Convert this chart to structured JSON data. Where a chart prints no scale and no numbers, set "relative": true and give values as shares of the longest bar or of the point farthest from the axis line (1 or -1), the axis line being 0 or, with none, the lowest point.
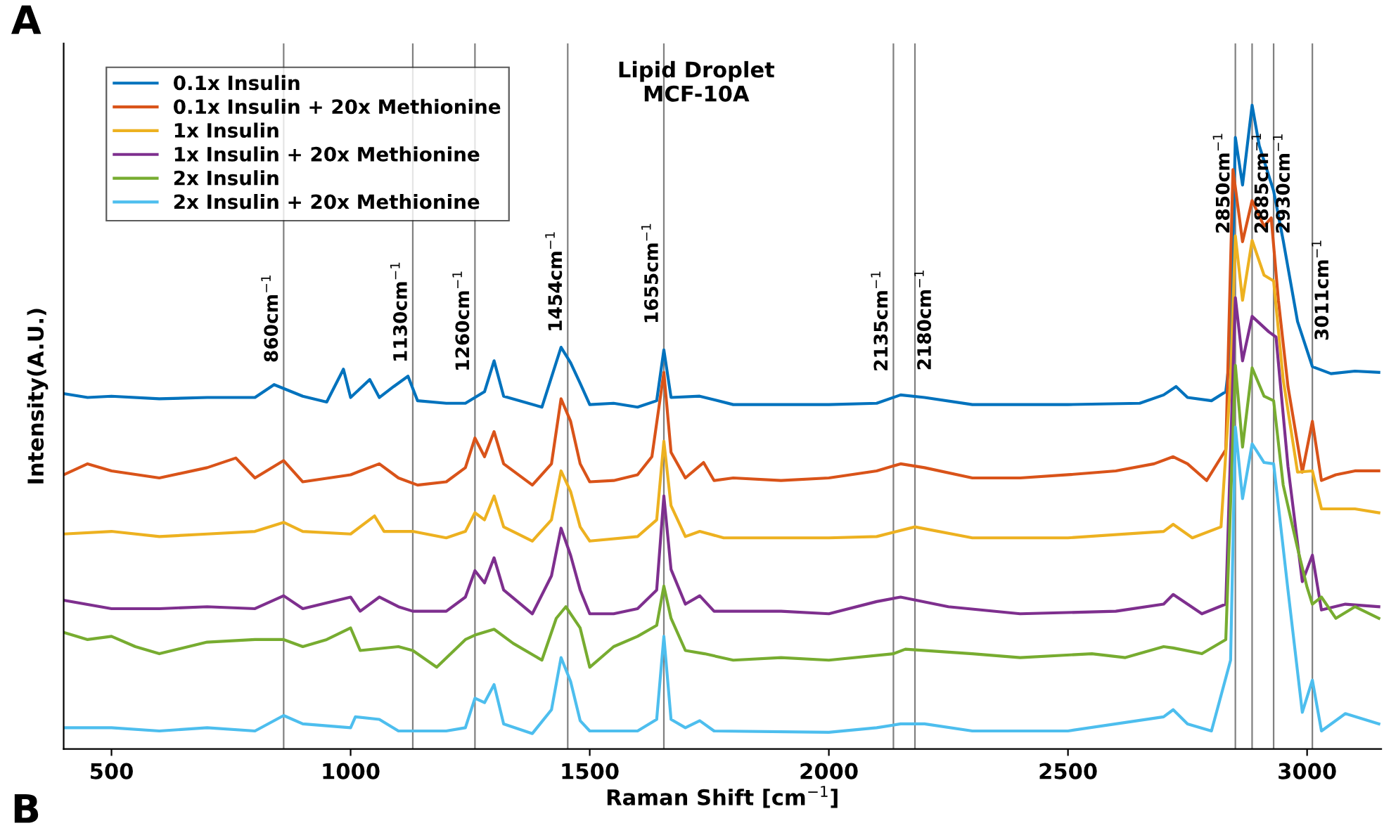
{
  "chart_data": {
    "type": "line",
    "title": "Lipid Droplet\nMCF-10A",
    "xlabel": "Raman Shift [cm$^{−1}$]",
    "ylabel": "Intensity(A.U.)",
    "relative": true,
    "annotations": [
      "A",
      "B"
    ],
    "xlim": [
      400,
      3155
    ],
    "xticks": [
      500,
      1000,
      1500,
      2000,
      2500,
      3000
    ],
    "grid": false,
    "legend": "top left",
    "marker": "none",
    "line_style": "solid",
    "ref_lines": [
      {
        "axis": "x",
        "value": 860,
        "label": "860cm$^{−1}$",
        "color": "#808080"
      },
      {
        "axis": "x",
        "value": 1130,
        "label": "1130cm$^{−1}$",
        "color": "#808080"
      },
      {
        "axis": "x",
        "value": 1260,
        "label": "1260cm$^{−1}$",
        "color": "#808080"
      },
      {
        "axis": "x",
        "value": 1454,
        "label": "1454cm$^{−1}$",
        "color": "#808080"
      },
      {
        "axis": "x",
        "value": 1655,
        "label": "1655cm$^{−1}$",
        "color": "#808080"
      },
      {
        "axis": "x",
        "value": 2135,
        "label": "2135cm$^{−1}$",
        "color": "#808080"
      },
      {
        "axis": "x",
        "value": 2180,
        "label": "2180cm$^{−1}$",
        "color": "#808080"
      },
      {
        "axis": "x",
        "value": 2850,
        "label": "2850cm$^{−1}$",
        "color": "#808080"
      },
      {
        "axis": "x",
        "value": 2885,
        "label": "2885cm$^{−1}$",
        "color": "#808080"
      },
      {
        "axis": "x",
        "value": 2930,
        "label": "2930cm$^{−1}$",
        "color": "#808080"
      },
      {
        "axis": "x",
        "value": 3011,
        "label": "3011cm$^{−1}$",
        "color": "#808080"
      }
    ],
    "series": [
      {
        "name": "0.1x Insulin",
        "color": "#0072bd",
        "x": [
          400,
          450,
          500,
          600,
          700,
          800,
          840,
          900,
          950,
          985,
          1000,
          1040,
          1060,
          1090,
          1120,
          1140,
          1200,
          1240,
          1280,
          1300,
          1320,
          1400,
          1440,
          1460,
          1480,
          1500,
          1550,
          1600,
          1640,
          1655,
          1670,
          1730,
          1800,
          2000,
          2100,
          2150,
          2200,
          2300,
          2500,
          2650,
          2700,
          2726,
          2750,
          2800,
          2830,
          2840,
          2850,
          2865,
          2885,
          2900,
          2930,
          2950,
          2980,
          3011,
          3050,
          3100,
          3150
        ],
        "values": [
          0.552,
          0.546,
          0.548,
          0.544,
          0.546,
          0.546,
          0.566,
          0.548,
          0.539,
          0.59,
          0.546,
          0.574,
          0.546,
          0.563,
          0.579,
          0.541,
          0.537,
          0.537,
          0.555,
          0.603,
          0.548,
          0.531,
          0.624,
          0.6,
          0.568,
          0.535,
          0.537,
          0.531,
          0.541,
          0.62,
          0.546,
          0.548,
          0.535,
          0.535,
          0.537,
          0.55,
          0.546,
          0.535,
          0.535,
          0.537,
          0.55,
          0.563,
          0.546,
          0.541,
          0.555,
          0.62,
          0.95,
          0.876,
          1.0,
          0.937,
          0.867,
          0.79,
          0.664,
          0.594,
          0.583,
          0.587,
          0.585
        ]
      },
      {
        "name": "0.1x Insulin + 20x Methionine",
        "color": "#d95319",
        "x": [
          400,
          450,
          500,
          600,
          700,
          760,
          800,
          860,
          900,
          1000,
          1060,
          1100,
          1140,
          1200,
          1240,
          1260,
          1280,
          1300,
          1320,
          1380,
          1420,
          1440,
          1460,
          1480,
          1500,
          1550,
          1600,
          1630,
          1655,
          1670,
          1700,
          1738,
          1760,
          1800,
          1900,
          2000,
          2100,
          2150,
          2200,
          2300,
          2400,
          2500,
          2600,
          2680,
          2720,
          2750,
          2790,
          2830,
          2845,
          2865,
          2885,
          2910,
          2925,
          2940,
          2960,
          2990,
          3011,
          3030,
          3060,
          3100,
          3150
        ],
        "values": [
          0.426,
          0.443,
          0.432,
          0.421,
          0.437,
          0.452,
          0.421,
          0.448,
          0.415,
          0.426,
          0.443,
          0.421,
          0.41,
          0.415,
          0.437,
          0.483,
          0.454,
          0.493,
          0.443,
          0.41,
          0.443,
          0.544,
          0.509,
          0.443,
          0.415,
          0.417,
          0.426,
          0.454,
          0.585,
          0.461,
          0.421,
          0.445,
          0.417,
          0.421,
          0.417,
          0.421,
          0.432,
          0.443,
          0.437,
          0.421,
          0.421,
          0.426,
          0.432,
          0.443,
          0.454,
          0.443,
          0.417,
          0.465,
          0.9,
          0.788,
          0.852,
          0.812,
          0.825,
          0.697,
          0.563,
          0.43,
          0.509,
          0.417,
          0.426,
          0.432,
          0.432
        ]
      },
      {
        "name": "1x Insulin",
        "color": "#edb120",
        "x": [
          400,
          500,
          600,
          700,
          800,
          860,
          900,
          1000,
          1050,
          1070,
          1130,
          1200,
          1240,
          1260,
          1280,
          1300,
          1320,
          1380,
          1420,
          1440,
          1460,
          1480,
          1500,
          1600,
          1640,
          1655,
          1670,
          1700,
          1730,
          1780,
          2000,
          2100,
          2180,
          2300,
          2500,
          2700,
          2720,
          2760,
          2820,
          2840,
          2850,
          2865,
          2885,
          2910,
          2930,
          2950,
          2980,
          3011,
          3030,
          3100,
          3150
        ],
        "values": [
          0.334,
          0.338,
          0.33,
          0.334,
          0.338,
          0.352,
          0.338,
          0.334,
          0.362,
          0.338,
          0.338,
          0.328,
          0.338,
          0.367,
          0.356,
          0.393,
          0.345,
          0.323,
          0.356,
          0.432,
          0.4,
          0.345,
          0.323,
          0.33,
          0.356,
          0.478,
          0.378,
          0.33,
          0.338,
          0.328,
          0.328,
          0.33,
          0.345,
          0.328,
          0.328,
          0.338,
          0.349,
          0.328,
          0.345,
          0.574,
          0.797,
          0.697,
          0.79,
          0.736,
          0.727,
          0.574,
          0.43,
          0.432,
          0.373,
          0.373,
          0.367
        ]
      },
      {
        "name": "1x Insulin + 20x Methionine",
        "color": "#7e2f8e",
        "x": [
          400,
          500,
          600,
          700,
          800,
          860,
          900,
          1000,
          1020,
          1060,
          1100,
          1130,
          1200,
          1240,
          1260,
          1280,
          1300,
          1320,
          1380,
          1420,
          1440,
          1460,
          1480,
          1500,
          1550,
          1600,
          1640,
          1655,
          1670,
          1700,
          1730,
          1760,
          1900,
          2000,
          2100,
          2150,
          2250,
          2400,
          2600,
          2700,
          2720,
          2780,
          2830,
          2850,
          2865,
          2885,
          2920,
          2935,
          2960,
          2990,
          3011,
          3030,
          3080,
          3150
        ],
        "values": [
          0.231,
          0.218,
          0.218,
          0.221,
          0.218,
          0.238,
          0.218,
          0.236,
          0.214,
          0.236,
          0.221,
          0.214,
          0.214,
          0.236,
          0.277,
          0.258,
          0.297,
          0.247,
          0.21,
          0.269,
          0.343,
          0.301,
          0.247,
          0.21,
          0.21,
          0.218,
          0.247,
          0.393,
          0.279,
          0.225,
          0.238,
          0.214,
          0.214,
          0.21,
          0.229,
          0.236,
          0.221,
          0.21,
          0.214,
          0.225,
          0.24,
          0.21,
          0.225,
          0.701,
          0.603,
          0.672,
          0.648,
          0.64,
          0.439,
          0.26,
          0.301,
          0.216,
          0.225,
          0.221
        ]
      },
      {
        "name": "2x Insulin",
        "color": "#77ac30",
        "x": [
          400,
          450,
          500,
          550,
          600,
          700,
          800,
          860,
          900,
          950,
          1000,
          1020,
          1100,
          1130,
          1180,
          1240,
          1260,
          1300,
          1340,
          1400,
          1430,
          1450,
          1480,
          1500,
          1550,
          1600,
          1640,
          1655,
          1670,
          1700,
          1740,
          1800,
          1900,
          2000,
          2135,
          2160,
          2300,
          2400,
          2550,
          2620,
          2700,
          2720,
          2780,
          2830,
          2850,
          2865,
          2885,
          2910,
          2930,
          2950,
          2980,
          3000,
          3011,
          3030,
          3060,
          3100,
          3150
        ],
        "values": [
          0.181,
          0.17,
          0.175,
          0.159,
          0.148,
          0.166,
          0.17,
          0.17,
          0.159,
          0.17,
          0.188,
          0.153,
          0.159,
          0.153,
          0.127,
          0.17,
          0.177,
          0.186,
          0.164,
          0.138,
          0.203,
          0.221,
          0.188,
          0.127,
          0.159,
          0.175,
          0.192,
          0.253,
          0.203,
          0.153,
          0.148,
          0.138,
          0.142,
          0.138,
          0.148,
          0.155,
          0.148,
          0.142,
          0.148,
          0.142,
          0.159,
          0.157,
          0.148,
          0.17,
          0.596,
          0.469,
          0.592,
          0.548,
          0.541,
          0.41,
          0.312,
          0.251,
          0.225,
          0.236,
          0.203,
          0.221,
          0.203
        ]
      },
      {
        "name": "2x Insulin + 20x Methionine",
        "color": "#4dbeee",
        "x": [
          400,
          500,
          600,
          700,
          800,
          860,
          900,
          1000,
          1010,
          1060,
          1100,
          1200,
          1240,
          1260,
          1280,
          1300,
          1320,
          1380,
          1420,
          1440,
          1460,
          1480,
          1500,
          1600,
          1640,
          1655,
          1670,
          1700,
          1730,
          1760,
          2000,
          2100,
          2150,
          2200,
          2300,
          2500,
          2700,
          2720,
          2750,
          2800,
          2840,
          2850,
          2865,
          2885,
          2910,
          2930,
          2960,
          2990,
          3011,
          3030,
          3080,
          3150
        ],
        "values": [
          0.033,
          0.033,
          0.028,
          0.033,
          0.028,
          0.052,
          0.039,
          0.033,
          0.05,
          0.046,
          0.028,
          0.028,
          0.033,
          0.079,
          0.072,
          0.1,
          0.039,
          0.024,
          0.061,
          0.142,
          0.105,
          0.044,
          0.028,
          0.028,
          0.046,
          0.175,
          0.046,
          0.033,
          0.044,
          0.028,
          0.026,
          0.033,
          0.039,
          0.039,
          0.028,
          0.028,
          0.05,
          0.061,
          0.039,
          0.028,
          0.138,
          0.5,
          0.389,
          0.474,
          0.445,
          0.443,
          0.247,
          0.057,
          0.107,
          0.028,
          0.055,
          0.039
        ]
      }
    ]
  }
}
